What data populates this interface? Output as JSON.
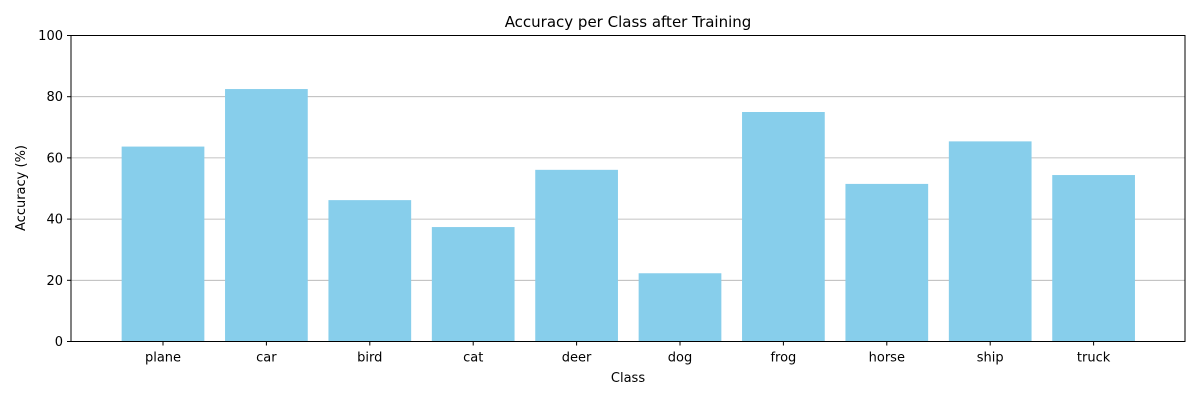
{
  "chart_data": {
    "type": "bar",
    "title": "Accuracy per Class after Training",
    "xlabel": "Class",
    "ylabel": "Accuracy (%)",
    "categories": [
      "plane",
      "car",
      "bird",
      "cat",
      "deer",
      "dog",
      "frog",
      "horse",
      "ship",
      "truck"
    ],
    "values": [
      63.7,
      82.5,
      46.2,
      37.4,
      56.1,
      22.3,
      75.0,
      51.5,
      65.4,
      54.4
    ],
    "ylim": [
      0,
      100
    ],
    "yticks": [
      0,
      20,
      40,
      60,
      80,
      100
    ],
    "grid": "y-axis only",
    "legend": "none",
    "colors": {
      "bar": "#87CEEB",
      "grid": "#b0b0b0",
      "axis": "#000000"
    }
  }
}
